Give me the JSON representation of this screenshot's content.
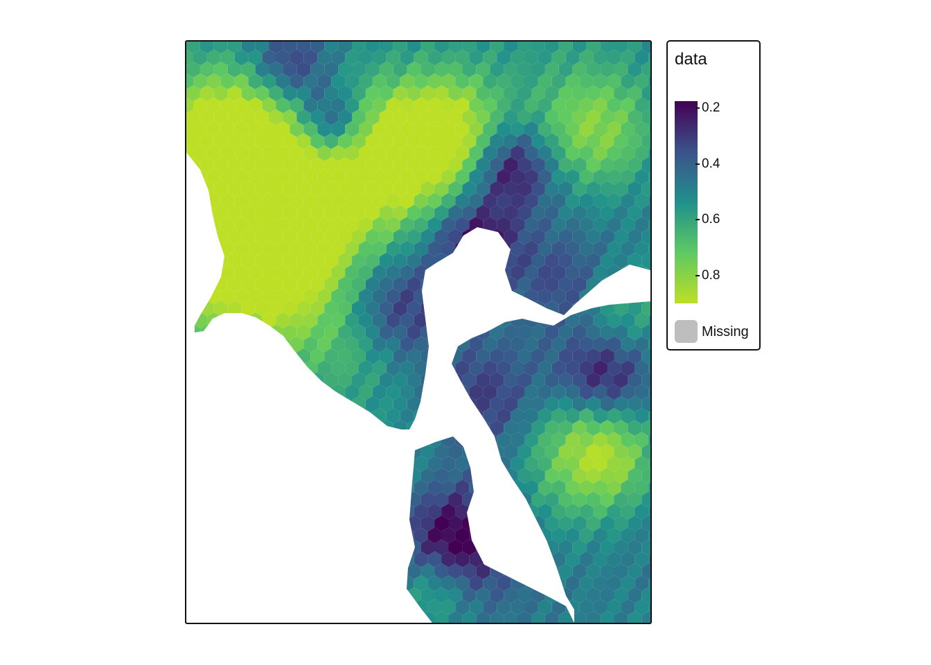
{
  "legend": {
    "title": "data",
    "ticks": [
      {
        "value": 0.2,
        "label": "0.2"
      },
      {
        "value": 0.4,
        "label": "0.4"
      },
      {
        "value": 0.6,
        "label": "0.6"
      },
      {
        "value": 0.8,
        "label": "0.8"
      }
    ],
    "range": [
      0.18,
      0.9
    ],
    "missing_label": "Missing",
    "missing_color": "#bebebe"
  },
  "color_scale": {
    "name": "viridis-reversed",
    "stops": [
      "#440154",
      "#3b528b",
      "#21908c",
      "#5ec962",
      "#bddf26"
    ]
  },
  "water_color": "#ffffff"
}
